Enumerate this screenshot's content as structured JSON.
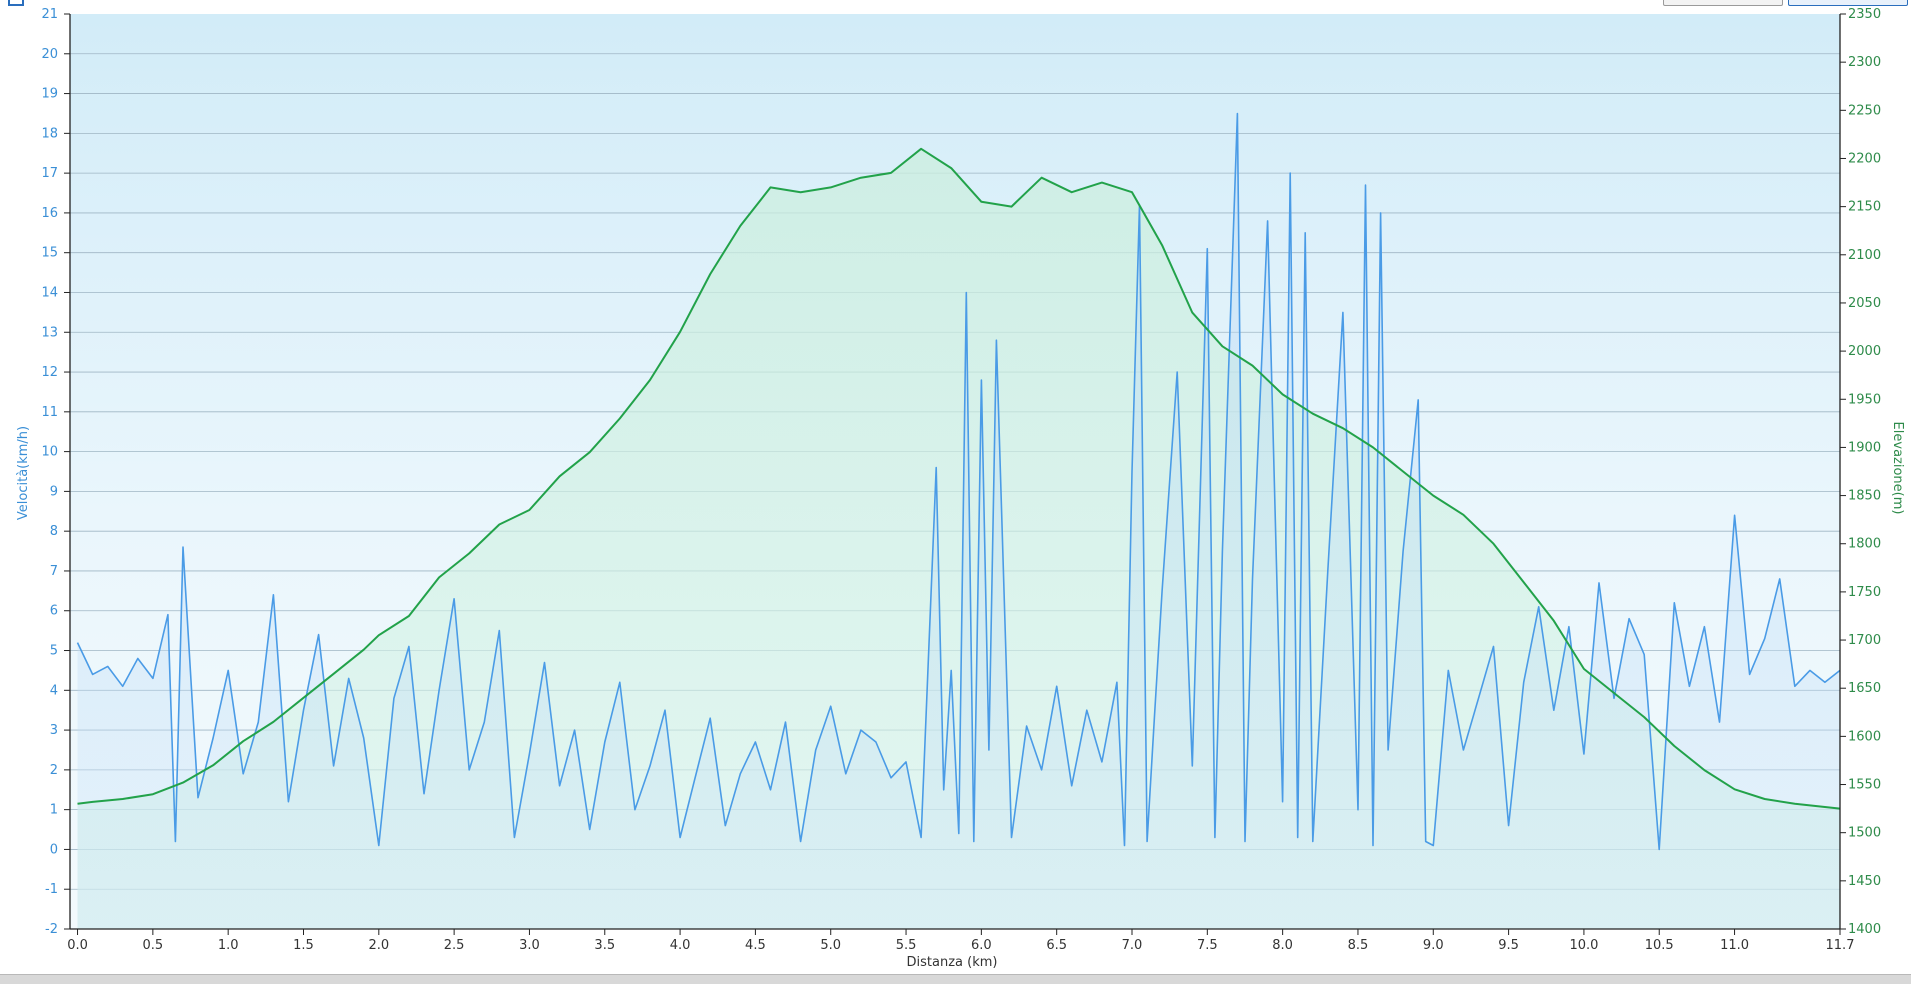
{
  "chart_data": {
    "type": "line",
    "title": "",
    "xlabel": "Distanza  (km)",
    "ylabel_left": "Velocità(km/h)",
    "ylabel_right": "Elevazione(m)",
    "xlim": [
      -0.05,
      11.7
    ],
    "ylim_left": [
      -2,
      21
    ],
    "ylim_right": [
      1400,
      2350
    ],
    "x_ticks": [
      "0.0",
      "0.5",
      "1.0",
      "1.5",
      "2.0",
      "2.5",
      "3.0",
      "3.5",
      "4.0",
      "4.5",
      "5.0",
      "5.5",
      "6.0",
      "6.5",
      "7.0",
      "7.5",
      "8.0",
      "8.5",
      "9.0",
      "9.5",
      "10.0",
      "10.5",
      "11.0",
      "11.7"
    ],
    "x_tick_values": [
      0,
      0.5,
      1,
      1.5,
      2,
      2.5,
      3,
      3.5,
      4,
      4.5,
      5,
      5.5,
      6,
      6.5,
      7,
      7.5,
      8,
      8.5,
      9,
      9.5,
      10,
      10.5,
      11,
      11.7
    ],
    "y_left_ticks": [
      -2,
      -1,
      0,
      1,
      2,
      3,
      4,
      5,
      6,
      7,
      8,
      9,
      10,
      11,
      12,
      13,
      14,
      15,
      16,
      17,
      18,
      19,
      20,
      21
    ],
    "y_right_ticks": [
      1400,
      1450,
      1500,
      1550,
      1600,
      1650,
      1700,
      1750,
      1800,
      1850,
      1900,
      1950,
      2000,
      2050,
      2100,
      2150,
      2200,
      2250,
      2300,
      2350
    ],
    "grid": true,
    "colors": {
      "speed": "#4a9be6",
      "elevation": "#22a24a"
    },
    "series": [
      {
        "axis": "right",
        "x": [
          0,
          0.1,
          0.3,
          0.5,
          0.7,
          0.9,
          1.1,
          1.3,
          1.5,
          1.7,
          1.9,
          2.0,
          2.2,
          2.4,
          2.6,
          2.8,
          3.0,
          3.2,
          3.4,
          3.6,
          3.8,
          4.0,
          4.2,
          4.4,
          4.6,
          4.8,
          5.0,
          5.2,
          5.4,
          5.6,
          5.8,
          6.0,
          6.2,
          6.4,
          6.6,
          6.8,
          7.0,
          7.2,
          7.4,
          7.6,
          7.8,
          8.0,
          8.2,
          8.4,
          8.6,
          8.8,
          9.0,
          9.2,
          9.4,
          9.6,
          9.8,
          10.0,
          10.2,
          10.4,
          10.6,
          10.8,
          11.0,
          11.2,
          11.4,
          11.7
        ],
        "y": [
          1530,
          1532,
          1535,
          1540,
          1552,
          1570,
          1595,
          1615,
          1640,
          1665,
          1690,
          1705,
          1725,
          1765,
          1790,
          1820,
          1835,
          1870,
          1895,
          1930,
          1970,
          2020,
          2080,
          2130,
          2170,
          2165,
          2170,
          2180,
          2185,
          2210,
          2190,
          2155,
          2150,
          2180,
          2165,
          2175,
          2165,
          2110,
          2040,
          2005,
          1985,
          1955,
          1935,
          1920,
          1900,
          1875,
          1850,
          1830,
          1800,
          1760,
          1720,
          1670,
          1645,
          1620,
          1590,
          1565,
          1545,
          1535,
          1530,
          1525
        ]
      },
      {
        "axis": "left",
        "x": [
          0,
          0.1,
          0.2,
          0.3,
          0.4,
          0.5,
          0.6,
          0.65,
          0.7,
          0.8,
          0.9,
          1.0,
          1.1,
          1.2,
          1.3,
          1.4,
          1.5,
          1.6,
          1.7,
          1.8,
          1.9,
          2.0,
          2.1,
          2.2,
          2.3,
          2.4,
          2.5,
          2.6,
          2.7,
          2.8,
          2.9,
          3.0,
          3.1,
          3.2,
          3.3,
          3.4,
          3.5,
          3.6,
          3.7,
          3.8,
          3.9,
          4.0,
          4.1,
          4.2,
          4.3,
          4.4,
          4.5,
          4.6,
          4.7,
          4.8,
          4.9,
          5.0,
          5.1,
          5.2,
          5.3,
          5.4,
          5.5,
          5.6,
          5.7,
          5.75,
          5.8,
          5.85,
          5.9,
          5.95,
          6.0,
          6.05,
          6.1,
          6.2,
          6.3,
          6.4,
          6.5,
          6.6,
          6.7,
          6.8,
          6.9,
          6.95,
          7.0,
          7.05,
          7.1,
          7.15,
          7.2,
          7.3,
          7.4,
          7.5,
          7.55,
          7.6,
          7.7,
          7.75,
          7.8,
          7.9,
          8.0,
          8.05,
          8.1,
          8.15,
          8.2,
          8.3,
          8.4,
          8.5,
          8.55,
          8.6,
          8.65,
          8.7,
          8.8,
          8.9,
          8.95,
          9.0,
          9.1,
          9.2,
          9.3,
          9.4,
          9.5,
          9.6,
          9.7,
          9.8,
          9.9,
          10.0,
          10.1,
          10.2,
          10.3,
          10.4,
          10.5,
          10.6,
          10.7,
          10.8,
          10.9,
          11.0,
          11.1,
          11.2,
          11.3,
          11.4,
          11.5,
          11.6,
          11.7
        ],
        "y": [
          5.2,
          4.4,
          4.6,
          4.1,
          4.8,
          4.3,
          5.9,
          0.2,
          7.6,
          1.3,
          2.8,
          4.5,
          1.9,
          3.2,
          6.4,
          1.2,
          3.5,
          5.4,
          2.1,
          4.3,
          2.8,
          0.1,
          3.8,
          5.1,
          1.4,
          4.0,
          6.3,
          2.0,
          3.2,
          5.5,
          0.3,
          2.4,
          4.7,
          1.6,
          3.0,
          0.5,
          2.7,
          4.2,
          1.0,
          2.1,
          3.5,
          0.3,
          1.8,
          3.3,
          0.6,
          1.9,
          2.7,
          1.5,
          3.2,
          0.2,
          2.5,
          3.6,
          1.9,
          3.0,
          2.7,
          1.8,
          2.2,
          0.3,
          9.6,
          1.5,
          4.5,
          0.4,
          14.0,
          0.2,
          11.8,
          2.5,
          12.8,
          0.3,
          3.1,
          2.0,
          4.1,
          1.6,
          3.5,
          2.2,
          4.2,
          0.1,
          9.5,
          16.2,
          0.2,
          3.4,
          6.5,
          12.0,
          2.1,
          15.1,
          0.3,
          7.5,
          18.5,
          0.2,
          6.8,
          15.8,
          1.2,
          17.0,
          0.3,
          15.5,
          0.2,
          7.0,
          13.5,
          1.0,
          16.7,
          0.1,
          16.0,
          2.5,
          7.5,
          11.3,
          0.2,
          0.1,
          4.5,
          2.5,
          3.8,
          5.1,
          0.6,
          4.2,
          6.1,
          3.5,
          5.6,
          2.4,
          6.7,
          3.8,
          5.8,
          4.9,
          0.0,
          6.2,
          4.1,
          5.6,
          3.2,
          8.4,
          4.4,
          5.3,
          6.8,
          4.1,
          4.5,
          4.2,
          4.5
        ]
      }
    ]
  }
}
